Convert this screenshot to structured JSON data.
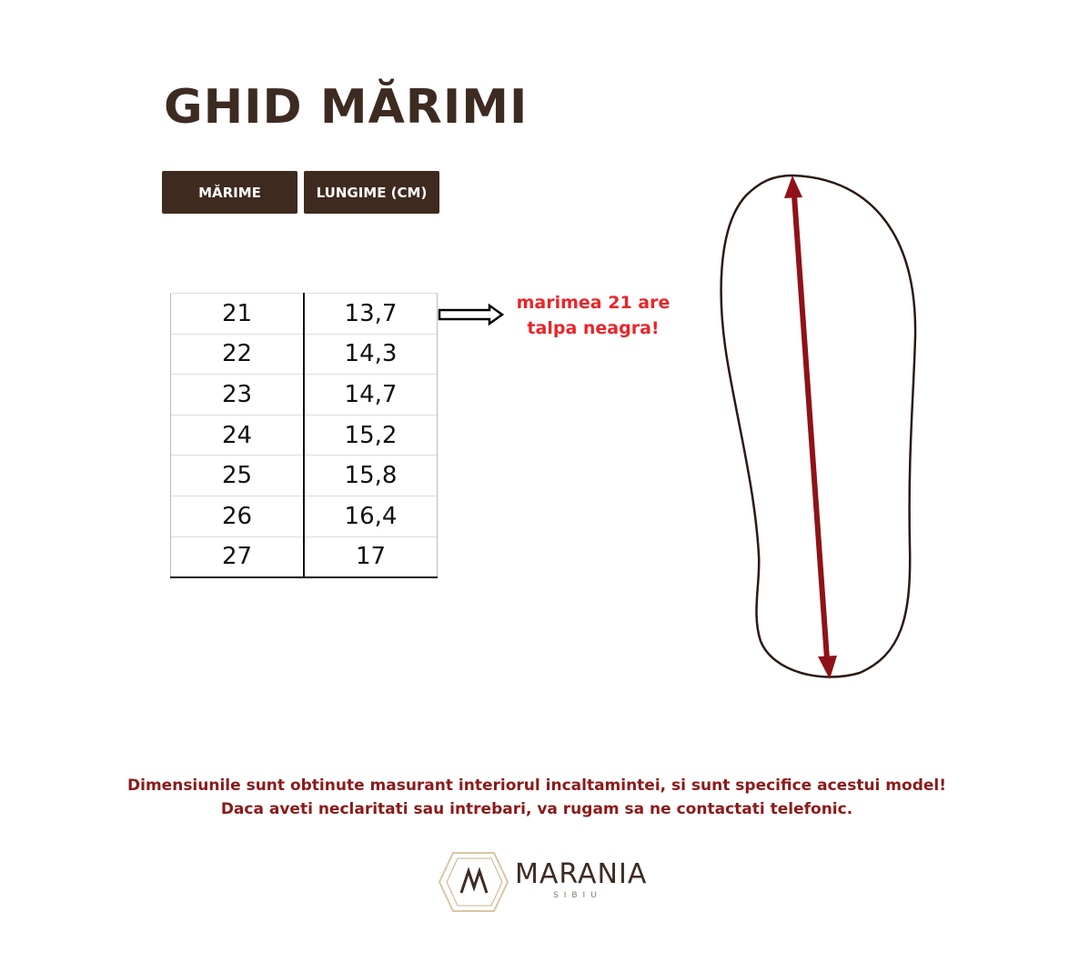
{
  "header": {
    "title": "GHID MĂRIMI",
    "columns": [
      "MĂRIME",
      "LUNGIME (CM)"
    ]
  },
  "table": {
    "rows": [
      [
        "21",
        "13,7"
      ],
      [
        "22",
        "14,3"
      ],
      [
        "23",
        "14,7"
      ],
      [
        "24",
        "15,2"
      ],
      [
        "25",
        "15,8"
      ],
      [
        "26",
        "16,4"
      ],
      [
        "27",
        "17"
      ]
    ]
  },
  "note": {
    "lines": [
      "marimea 21 are",
      "talpa neagra!"
    ]
  },
  "footer": {
    "lines": [
      "Dimensiunile sunt obtinute masurant interiorul incaltamintei, si sunt specifice acestui model!",
      "Daca aveti neclaritati sau intrebari, va rugam sa ne contactati telefonic."
    ]
  },
  "logo": {
    "name": "MARANIA",
    "city": "SIBIU"
  }
}
